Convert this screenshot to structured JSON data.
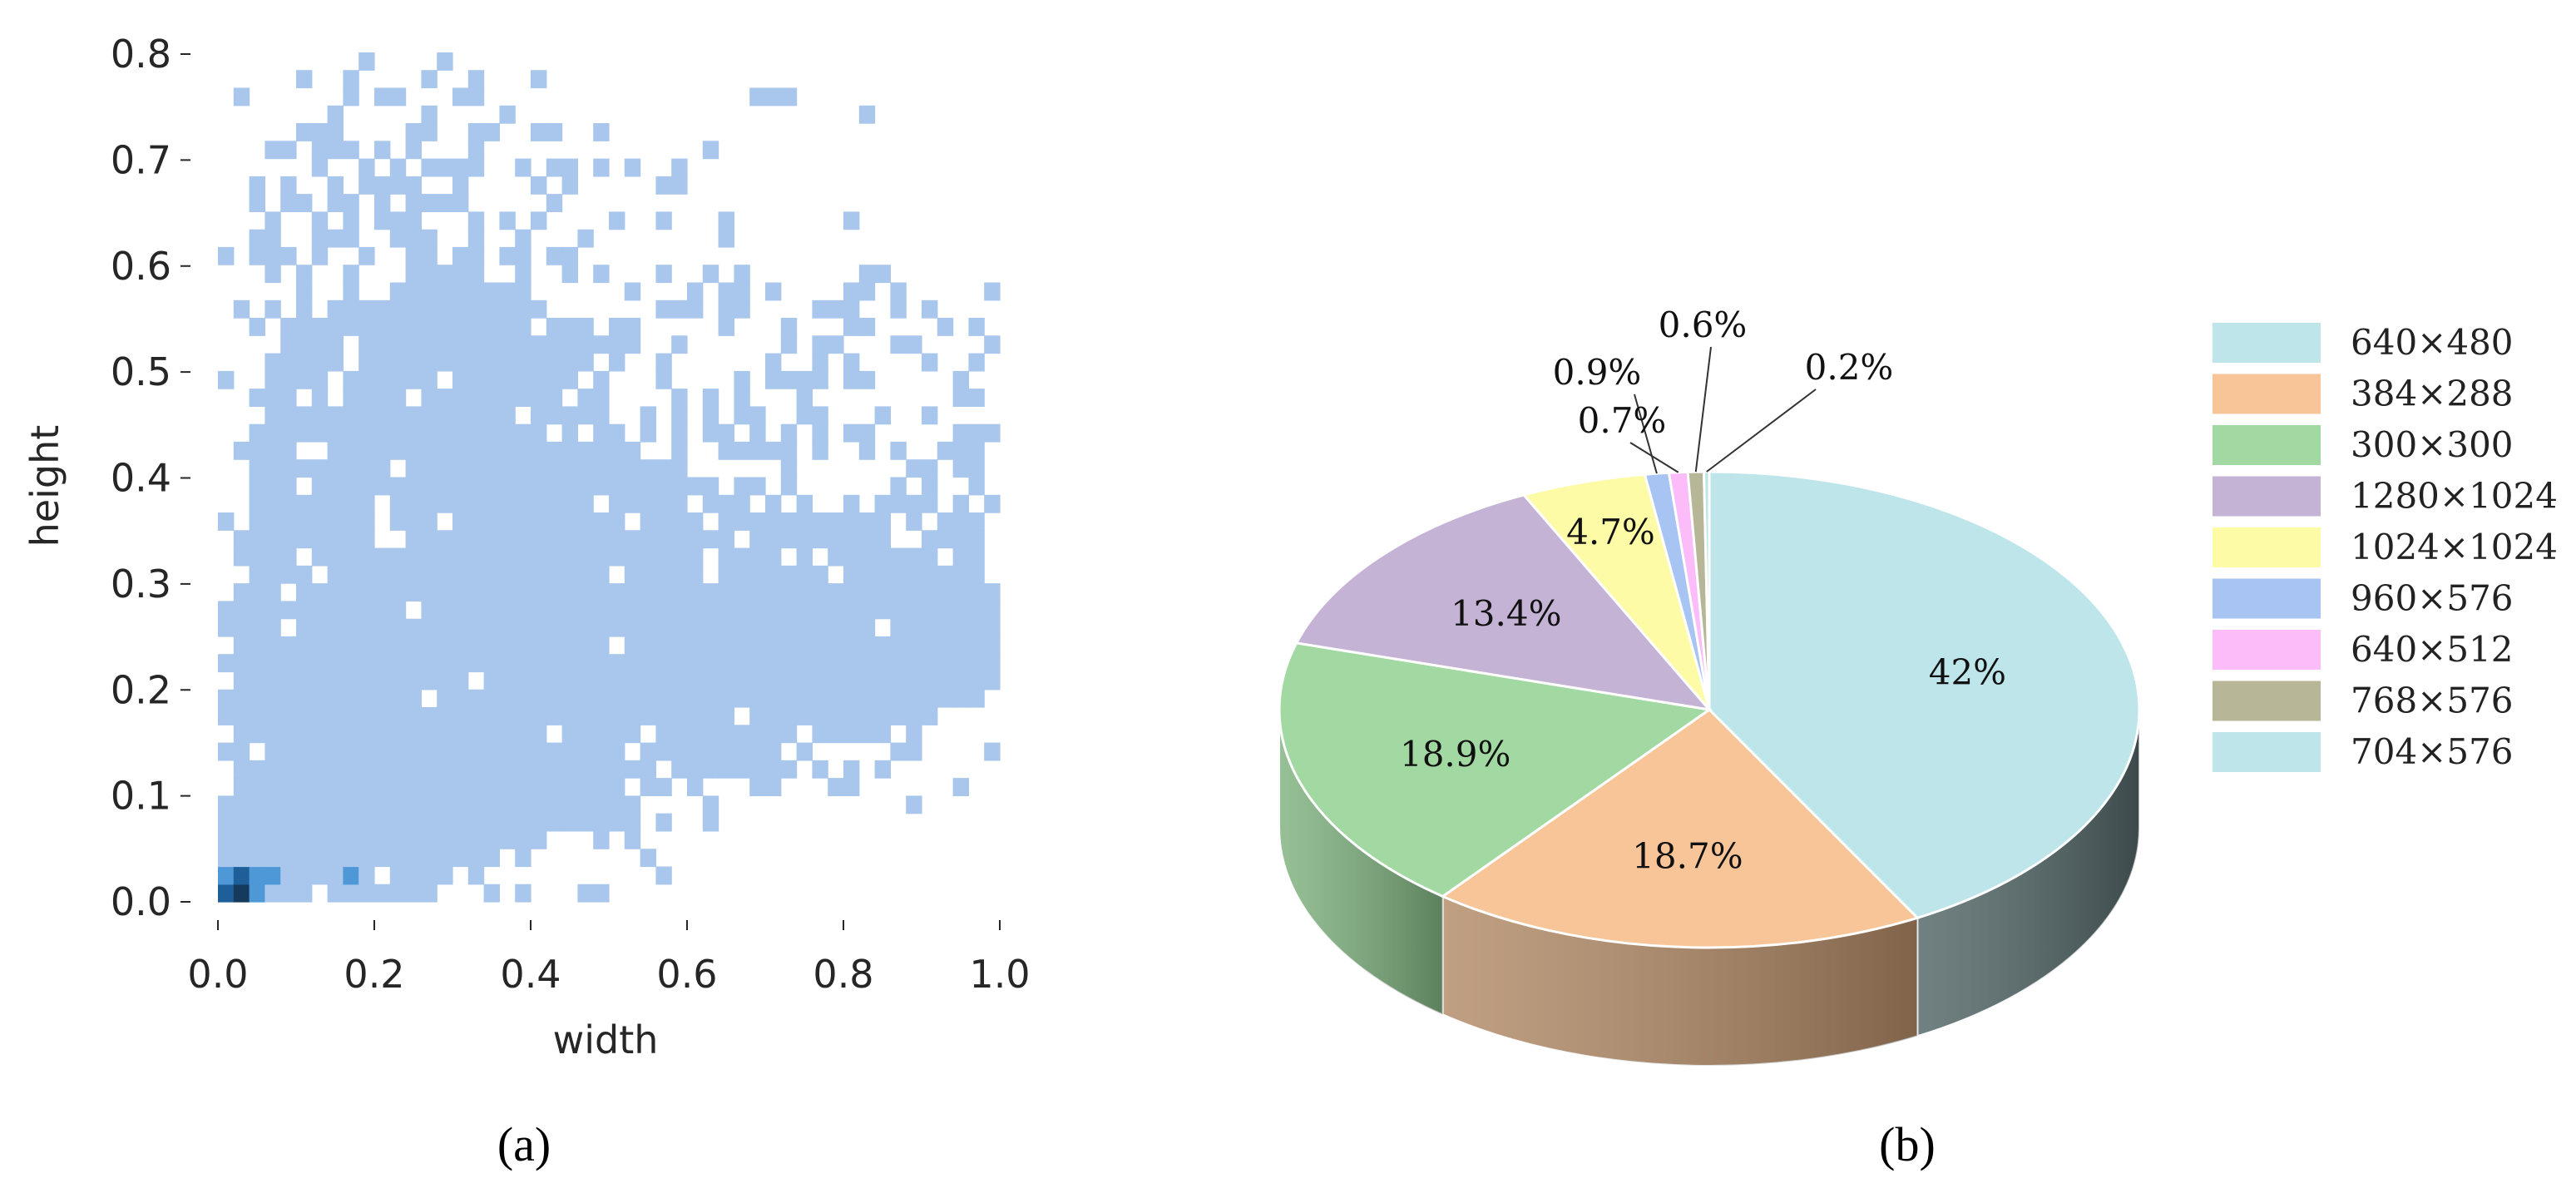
{
  "panels": {
    "a": "(a)",
    "b": "(b)"
  },
  "chart_data": [
    {
      "type": "heatmap",
      "panel": "(a)",
      "xlabel": "width",
      "ylabel": "height",
      "xlim": [
        0.0,
        1.0
      ],
      "ylim": [
        0.0,
        0.8
      ],
      "x_ticks": [
        "0.0",
        "0.2",
        "0.4",
        "0.6",
        "0.8",
        "1.0"
      ],
      "y_ticks": [
        "0.0",
        "0.1",
        "0.2",
        "0.3",
        "0.4",
        "0.5",
        "0.6",
        "0.7",
        "0.8"
      ],
      "bin_width": 0.02,
      "bin_height": 0.0167,
      "colors": {
        "low": "#a9c6ec",
        "mid": "#4f98d8",
        "high": "#1f5f99",
        "peak": "#163a5c"
      },
      "dense_region": {
        "description_free": true,
        "profile": [
          [
            0.0,
            0.08
          ],
          [
            0.02,
            0.08
          ],
          [
            0.04,
            0.42
          ],
          [
            0.1,
            0.57
          ],
          [
            0.2,
            0.57
          ],
          [
            0.3,
            0.6
          ],
          [
            0.4,
            0.55
          ],
          [
            0.5,
            0.45
          ],
          [
            0.6,
            0.4
          ],
          [
            0.7,
            0.37
          ],
          [
            0.8,
            0.37
          ],
          [
            0.9,
            0.33
          ],
          [
            1.0,
            0.3
          ]
        ],
        "lower_edge": [
          [
            0.0,
            0.0
          ],
          [
            0.25,
            0.0
          ],
          [
            0.35,
            0.05
          ],
          [
            0.5,
            0.08
          ],
          [
            0.6,
            0.1
          ],
          [
            0.7,
            0.13
          ],
          [
            0.8,
            0.15
          ],
          [
            0.9,
            0.17
          ],
          [
            1.0,
            0.2
          ]
        ]
      },
      "peak_bins": [
        {
          "x": 0.0,
          "y": 0.0,
          "level": "high"
        },
        {
          "x": 0.02,
          "y": 0.0,
          "level": "peak"
        },
        {
          "x": 0.04,
          "y": 0.0,
          "level": "mid"
        },
        {
          "x": 0.0,
          "y": 0.017,
          "level": "mid"
        },
        {
          "x": 0.02,
          "y": 0.017,
          "level": "high"
        },
        {
          "x": 0.04,
          "y": 0.017,
          "level": "mid"
        },
        {
          "x": 0.06,
          "y": 0.017,
          "level": "mid"
        },
        {
          "x": 0.16,
          "y": 0.017,
          "level": "mid"
        }
      ]
    },
    {
      "type": "pie",
      "panel": "(b)",
      "style": "3d",
      "categories": [
        "640×480",
        "384×288",
        "300×300",
        "1280×1024",
        "1024×1024",
        "960×576",
        "640×512",
        "768×576",
        "704×576"
      ],
      "values": [
        42,
        18.7,
        18.9,
        13.4,
        4.7,
        0.9,
        0.7,
        0.6,
        0.2
      ],
      "labels": [
        "42%",
        "18.7%",
        "18.9%",
        "13.4%",
        "4.7%",
        "0.9%",
        "0.7%",
        "0.6%",
        "0.2%"
      ],
      "colors": [
        "#bde5ea",
        "#f7c598",
        "#a2d9a2",
        "#c5b3d6",
        "#fdfba6",
        "#a8c4f2",
        "#fcbcfa",
        "#b7b797",
        "#bde5ea"
      ],
      "side_colors": [
        "#526667",
        "#b28a66",
        "#7fb27f",
        "#9a89ab",
        "#d9d47f",
        "#7f97c0",
        "#d98fd6",
        "#8c8c6c",
        "#526667"
      ],
      "legend_position": "right"
    }
  ]
}
